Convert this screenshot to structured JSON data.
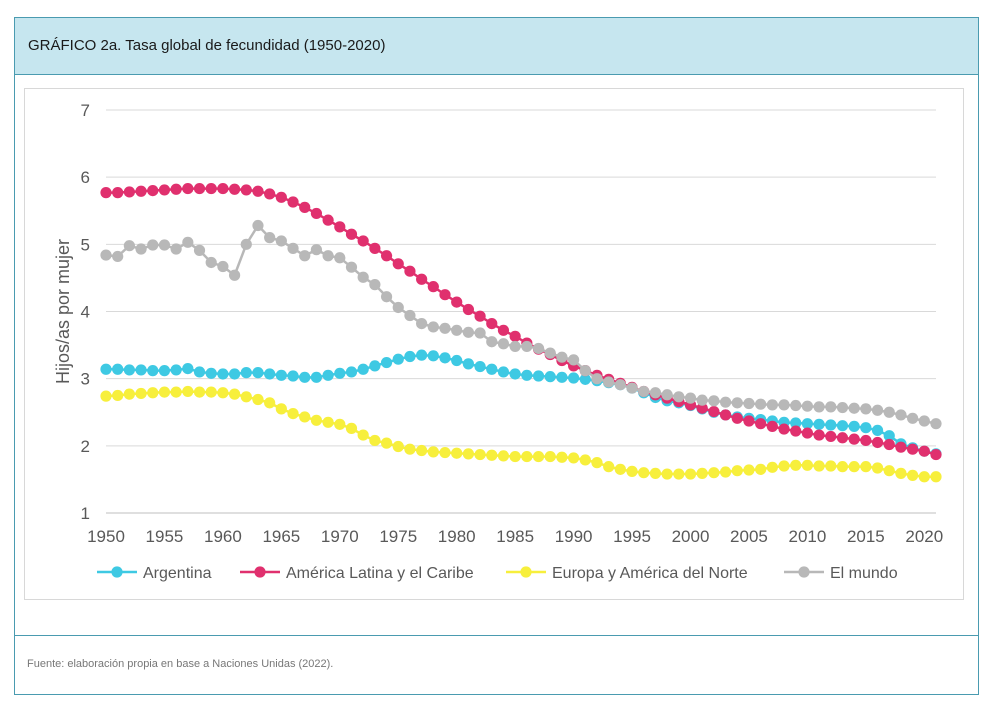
{
  "title": "GRÁFICO 2a. Tasa global de fecundidad (1950-2020)",
  "source": "Fuente: elaboración propia en base a Naciones Unidas (2022).",
  "chart_data": {
    "type": "line",
    "title": "",
    "xlabel": "",
    "ylabel": "Hijos/as por mujer",
    "xlim": [
      1950,
      2021
    ],
    "ylim": [
      1,
      7
    ],
    "grid": true,
    "legend": "bottom",
    "x_ticks": [
      1950,
      1955,
      1960,
      1965,
      1970,
      1975,
      1980,
      1985,
      1990,
      1995,
      2000,
      2005,
      2010,
      2015,
      2020
    ],
    "y_ticks": [
      1,
      2,
      3,
      4,
      5,
      6,
      7
    ],
    "x_start": 1950,
    "x_step": 1,
    "series": [
      {
        "name": "Argentina",
        "color": "#3ec9e3",
        "values": [
          3.14,
          3.14,
          3.13,
          3.13,
          3.12,
          3.12,
          3.13,
          3.15,
          3.1,
          3.08,
          3.07,
          3.07,
          3.09,
          3.09,
          3.07,
          3.05,
          3.04,
          3.02,
          3.02,
          3.05,
          3.08,
          3.1,
          3.14,
          3.19,
          3.24,
          3.29,
          3.33,
          3.35,
          3.34,
          3.31,
          3.27,
          3.22,
          3.18,
          3.14,
          3.1,
          3.07,
          3.05,
          3.04,
          3.03,
          3.02,
          3.01,
          2.99,
          2.97,
          2.94,
          2.91,
          2.86,
          2.79,
          2.72,
          2.67,
          2.64,
          2.6,
          2.55,
          2.5,
          2.46,
          2.43,
          2.41,
          2.39,
          2.37,
          2.35,
          2.34,
          2.33,
          2.32,
          2.31,
          2.3,
          2.29,
          2.27,
          2.23,
          2.15,
          2.03,
          1.97,
          1.92,
          1.88
        ]
      },
      {
        "name": "América Latina y el Caribe",
        "color": "#e0306e",
        "values": [
          5.77,
          5.77,
          5.78,
          5.79,
          5.8,
          5.81,
          5.82,
          5.83,
          5.83,
          5.83,
          5.83,
          5.82,
          5.81,
          5.79,
          5.75,
          5.7,
          5.63,
          5.55,
          5.46,
          5.36,
          5.26,
          5.15,
          5.05,
          4.94,
          4.83,
          4.71,
          4.6,
          4.48,
          4.37,
          4.25,
          4.14,
          4.03,
          3.93,
          3.82,
          3.72,
          3.63,
          3.53,
          3.44,
          3.36,
          3.27,
          3.19,
          3.12,
          3.05,
          2.99,
          2.93,
          2.87,
          2.81,
          2.76,
          2.71,
          2.66,
          2.61,
          2.56,
          2.51,
          2.46,
          2.41,
          2.37,
          2.33,
          2.29,
          2.25,
          2.22,
          2.19,
          2.16,
          2.14,
          2.12,
          2.1,
          2.08,
          2.05,
          2.02,
          1.98,
          1.95,
          1.92,
          1.87
        ]
      },
      {
        "name": "Europa y América del Norte",
        "color": "#f7ef3c",
        "values": [
          2.74,
          2.75,
          2.77,
          2.78,
          2.79,
          2.8,
          2.8,
          2.81,
          2.8,
          2.8,
          2.79,
          2.77,
          2.73,
          2.69,
          2.64,
          2.55,
          2.48,
          2.43,
          2.38,
          2.35,
          2.32,
          2.26,
          2.16,
          2.08,
          2.04,
          1.99,
          1.95,
          1.93,
          1.91,
          1.9,
          1.89,
          1.88,
          1.87,
          1.86,
          1.85,
          1.84,
          1.84,
          1.84,
          1.84,
          1.83,
          1.82,
          1.79,
          1.75,
          1.69,
          1.65,
          1.62,
          1.6,
          1.59,
          1.58,
          1.58,
          1.58,
          1.59,
          1.6,
          1.61,
          1.63,
          1.64,
          1.65,
          1.68,
          1.7,
          1.71,
          1.71,
          1.7,
          1.7,
          1.69,
          1.69,
          1.69,
          1.67,
          1.63,
          1.59,
          1.56,
          1.54,
          1.54
        ]
      },
      {
        "name": "El mundo",
        "color": "#b8b8b8",
        "values": [
          4.84,
          4.82,
          4.98,
          4.93,
          4.99,
          4.99,
          4.93,
          5.03,
          4.91,
          4.73,
          4.67,
          4.54,
          5.0,
          5.28,
          5.1,
          5.05,
          4.94,
          4.83,
          4.92,
          4.83,
          4.8,
          4.66,
          4.51,
          4.4,
          4.22,
          4.06,
          3.94,
          3.82,
          3.77,
          3.75,
          3.72,
          3.69,
          3.68,
          3.55,
          3.52,
          3.48,
          3.48,
          3.45,
          3.38,
          3.32,
          3.28,
          3.12,
          3.0,
          2.95,
          2.91,
          2.86,
          2.81,
          2.79,
          2.76,
          2.73,
          2.71,
          2.68,
          2.67,
          2.65,
          2.64,
          2.63,
          2.62,
          2.61,
          2.61,
          2.6,
          2.59,
          2.58,
          2.58,
          2.57,
          2.56,
          2.55,
          2.53,
          2.5,
          2.46,
          2.41,
          2.37,
          2.33
        ]
      }
    ]
  }
}
